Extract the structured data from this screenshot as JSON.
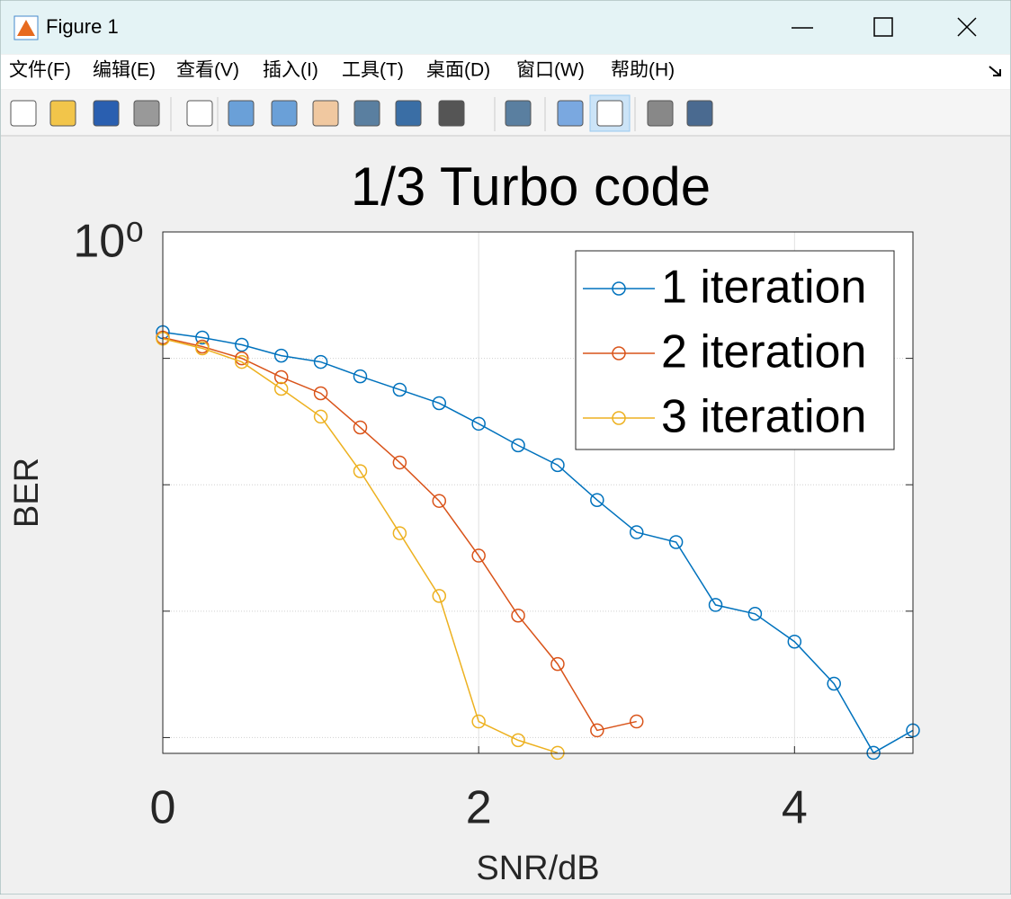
{
  "window": {
    "title": "Figure 1",
    "menu": [
      "文件(F)",
      "编辑(E)",
      "查看(V)",
      "插入(I)",
      "工具(T)",
      "桌面(D)",
      "窗口(W)",
      "帮助(H)"
    ]
  },
  "chart_data": {
    "type": "line",
    "title": "1/3 Turbo code",
    "x_label": "SNR/dB",
    "y_label": "BER",
    "y_scale": "log",
    "grid": true,
    "legend_position": "northeast",
    "marker": "circle",
    "x": [
      0,
      0.25,
      0.5,
      0.75,
      1,
      1.25,
      1.5,
      1.75,
      2,
      2.25,
      2.5,
      2.75,
      3,
      3.25,
      3.5,
      3.75,
      4,
      4.25,
      4.5,
      4.75
    ],
    "series": [
      {
        "name": "1 iteration",
        "color": "#0072bd",
        "values": [
          0.161,
          0.146,
          0.128,
          0.105,
          0.0937,
          0.0721,
          0.0565,
          0.0442,
          0.0304,
          0.0205,
          0.0143,
          0.00757,
          0.00421,
          0.00352,
          0.00112,
          0.000953,
          0.000574,
          0.000267,
          7.57e-05,
          0.000114
        ]
      },
      {
        "name": "2 iteration",
        "color": "#d95319",
        "values": [
          0.146,
          0.124,
          0.1,
          0.071,
          0.0529,
          0.0284,
          0.015,
          0.00745,
          0.00275,
          0.000923,
          0.000382,
          0.000114,
          0.000134,
          null,
          null,
          null,
          null,
          null,
          null,
          null
        ]
      },
      {
        "name": "3 iteration",
        "color": "#edb120",
        "values": [
          0.143,
          0.12,
          0.0937,
          0.0574,
          0.0346,
          0.0128,
          0.00414,
          0.00132,
          0.000134,
          9.53e-05,
          7.57e-05,
          null,
          null,
          null,
          null,
          null,
          null,
          null,
          null,
          null
        ]
      }
    ],
    "xlim": [
      0,
      4.75
    ],
    "xticks": [
      0,
      2,
      4
    ],
    "ylim": [
      7.5e-05,
      1
    ],
    "yticks": [
      {
        "value": 1,
        "label": "10⁰"
      }
    ],
    "y_gridlines": [
      0.1,
      0.01,
      0.001,
      0.0001
    ]
  }
}
